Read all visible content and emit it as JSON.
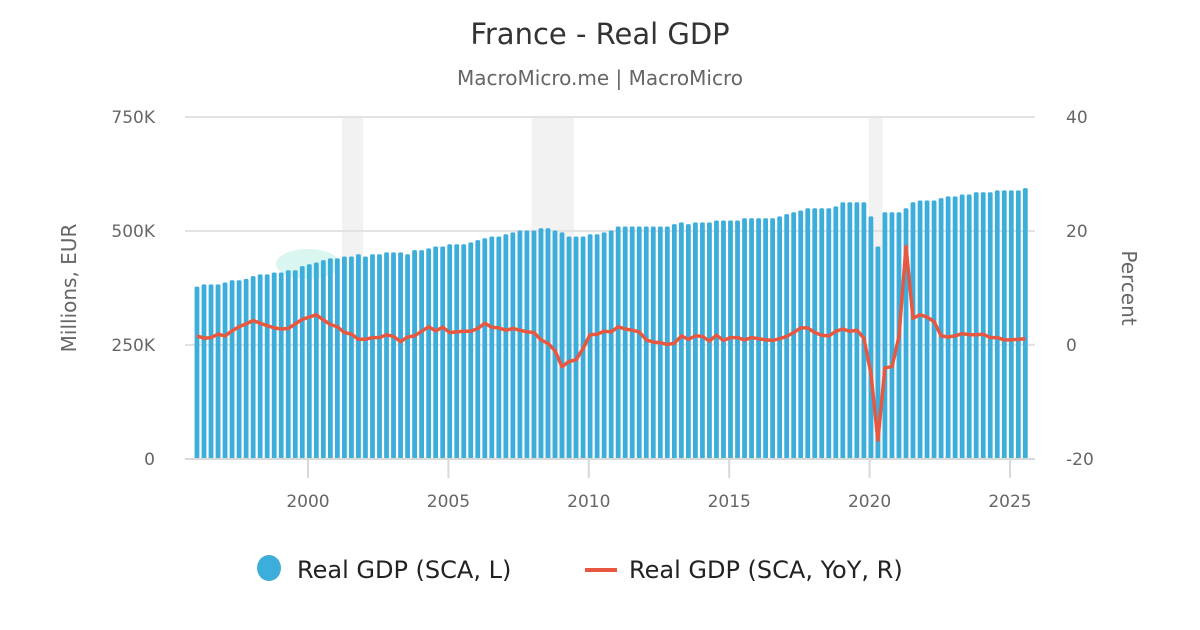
{
  "chart_data": {
    "type": "bar+line",
    "title": "France - Real GDP",
    "subtitle": "MacroMicro.me | MacroMicro",
    "left_axis": {
      "label": "Millions, EUR",
      "ylim": [
        0,
        750000
      ],
      "ticks": [
        0,
        250000,
        500000,
        750000
      ],
      "tick_labels": [
        "0",
        "250K",
        "500K",
        "750K"
      ]
    },
    "right_axis": {
      "label": "Percent",
      "ylim": [
        -20,
        40
      ],
      "ticks": [
        -20,
        0,
        20,
        40
      ],
      "tick_labels": [
        "-20",
        "0",
        "20",
        "40"
      ]
    },
    "x_axis": {
      "tick_labels": [
        "2000",
        "2005",
        "2010",
        "2015",
        "2020",
        "2025"
      ]
    },
    "grid": true,
    "legend_position": "bottom",
    "recession_shading": [
      [
        "2001Q2",
        "2001Q4"
      ],
      [
        "2008Q1",
        "2009Q2"
      ],
      [
        "2020Q1",
        "2020Q2"
      ]
    ],
    "x": [
      "1996Q1",
      "1996Q2",
      "1996Q3",
      "1996Q4",
      "1997Q1",
      "1997Q2",
      "1997Q3",
      "1997Q4",
      "1998Q1",
      "1998Q2",
      "1998Q3",
      "1998Q4",
      "1999Q1",
      "1999Q2",
      "1999Q3",
      "1999Q4",
      "2000Q1",
      "2000Q2",
      "2000Q3",
      "2000Q4",
      "2001Q1",
      "2001Q2",
      "2001Q3",
      "2001Q4",
      "2002Q1",
      "2002Q2",
      "2002Q3",
      "2002Q4",
      "2003Q1",
      "2003Q2",
      "2003Q3",
      "2003Q4",
      "2004Q1",
      "2004Q2",
      "2004Q3",
      "2004Q4",
      "2005Q1",
      "2005Q2",
      "2005Q3",
      "2005Q4",
      "2006Q1",
      "2006Q2",
      "2006Q3",
      "2006Q4",
      "2007Q1",
      "2007Q2",
      "2007Q3",
      "2007Q4",
      "2008Q1",
      "2008Q2",
      "2008Q3",
      "2008Q4",
      "2009Q1",
      "2009Q2",
      "2009Q3",
      "2009Q4",
      "2010Q1",
      "2010Q2",
      "2010Q3",
      "2010Q4",
      "2011Q1",
      "2011Q2",
      "2011Q3",
      "2011Q4",
      "2012Q1",
      "2012Q2",
      "2012Q3",
      "2012Q4",
      "2013Q1",
      "2013Q2",
      "2013Q3",
      "2013Q4",
      "2014Q1",
      "2014Q2",
      "2014Q3",
      "2014Q4",
      "2015Q1",
      "2015Q2",
      "2015Q3",
      "2015Q4",
      "2016Q1",
      "2016Q2",
      "2016Q3",
      "2016Q4",
      "2017Q1",
      "2017Q2",
      "2017Q3",
      "2017Q4",
      "2018Q1",
      "2018Q2",
      "2018Q3",
      "2018Q4",
      "2019Q1",
      "2019Q2",
      "2019Q3",
      "2019Q4",
      "2020Q1",
      "2020Q2",
      "2020Q3",
      "2020Q4",
      "2021Q1",
      "2021Q2",
      "2021Q3",
      "2021Q4",
      "2022Q1",
      "2022Q2",
      "2022Q3",
      "2022Q4",
      "2023Q1",
      "2023Q2",
      "2023Q3",
      "2023Q4",
      "2024Q1",
      "2024Q2",
      "2024Q3",
      "2024Q4",
      "2025Q1",
      "2025Q2",
      "2025Q3"
    ],
    "series": [
      {
        "name": "Real GDP (SCA, L)",
        "type": "bar",
        "axis": "left",
        "color": "#3daedb",
        "values": [
          378000,
          383000,
          383000,
          383000,
          387000,
          392000,
          392000,
          395000,
          401000,
          405000,
          405000,
          409000,
          409000,
          414000,
          414000,
          423000,
          427000,
          431000,
          436000,
          440000,
          440000,
          444000,
          444000,
          449000,
          444000,
          449000,
          449000,
          453000,
          453000,
          453000,
          449000,
          458000,
          458000,
          462000,
          466000,
          466000,
          471000,
          471000,
          471000,
          475000,
          480000,
          484000,
          488000,
          488000,
          493000,
          497000,
          501000,
          501000,
          501000,
          506000,
          506000,
          501000,
          497000,
          488000,
          488000,
          488000,
          493000,
          493000,
          497000,
          501000,
          510000,
          510000,
          510000,
          510000,
          510000,
          510000,
          510000,
          510000,
          515000,
          519000,
          515000,
          519000,
          519000,
          519000,
          523000,
          523000,
          523000,
          523000,
          528000,
          528000,
          528000,
          528000,
          528000,
          532000,
          537000,
          541000,
          545000,
          550000,
          550000,
          550000,
          550000,
          554000,
          563000,
          563000,
          563000,
          563000,
          532000,
          466000,
          541000,
          541000,
          541000,
          550000,
          563000,
          567000,
          567000,
          567000,
          572000,
          576000,
          576000,
          580000,
          580000,
          585000,
          585000,
          585000,
          589000,
          589000,
          589000,
          589000,
          594000
        ]
      },
      {
        "name": "Real GDP (SCA, YoY, R)",
        "type": "line",
        "axis": "right",
        "color": "#e8573f",
        "values": [
          1.6,
          1.2,
          1.3,
          1.9,
          1.6,
          2.5,
          3.2,
          3.7,
          4.3,
          3.8,
          3.4,
          3.0,
          2.8,
          2.9,
          3.7,
          4.5,
          4.9,
          5.3,
          4.4,
          3.6,
          3.2,
          2.2,
          1.9,
          1.0,
          1.0,
          1.3,
          1.3,
          1.8,
          1.5,
          0.6,
          1.4,
          1.6,
          2.4,
          3.2,
          2.5,
          3.1,
          2.2,
          2.3,
          2.4,
          2.4,
          2.9,
          3.8,
          3.1,
          3.0,
          2.6,
          2.9,
          2.6,
          2.3,
          2.2,
          0.9,
          0.3,
          -1.0,
          -3.8,
          -2.9,
          -2.6,
          -0.6,
          1.8,
          1.9,
          2.4,
          2.3,
          3.2,
          2.8,
          2.6,
          2.3,
          0.9,
          0.5,
          0.4,
          0.1,
          0.3,
          1.6,
          1.0,
          1.6,
          1.5,
          0.7,
          1.7,
          0.8,
          1.3,
          1.3,
          0.9,
          1.3,
          1.1,
          0.9,
          0.8,
          1.1,
          1.5,
          2.2,
          3.0,
          3.0,
          2.2,
          1.7,
          1.6,
          2.4,
          2.8,
          2.4,
          2.6,
          1.2,
          -5.0,
          -16.7,
          -4.0,
          -3.8,
          1.5,
          17.3,
          4.7,
          5.3,
          4.9,
          4.1,
          1.6,
          1.4,
          1.6,
          2.0,
          1.8,
          1.8,
          1.9,
          1.3,
          1.3,
          0.9,
          0.9,
          1.0,
          1.1
        ]
      }
    ]
  }
}
